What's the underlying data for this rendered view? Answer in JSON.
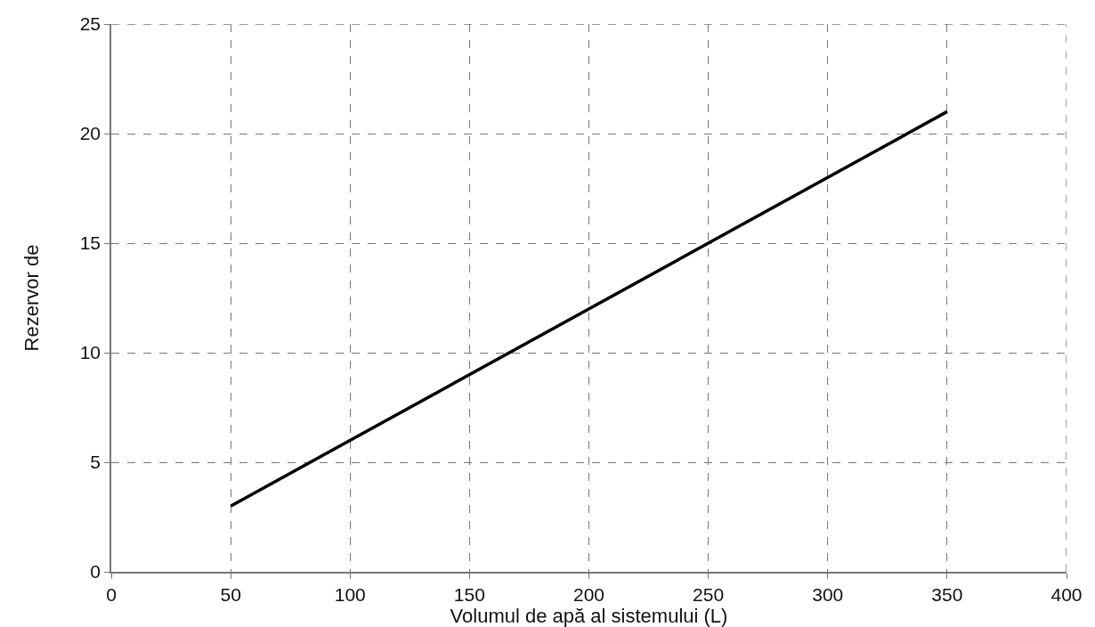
{
  "chart_data": {
    "type": "line",
    "xlabel": "Volumul de apă al sistemului (L)",
    "ylabel": "Rezervor de",
    "x": [
      50,
      350
    ],
    "series": [
      {
        "color": "#000000",
        "values": [
          3,
          21
        ]
      }
    ],
    "xlim": [
      0,
      400
    ],
    "xticks": [
      0,
      50,
      100,
      150,
      200,
      250,
      300,
      350,
      400
    ],
    "ylim": [
      0,
      25
    ],
    "yticks": [
      0,
      5,
      10,
      15,
      20,
      25
    ],
    "grid": true,
    "marker": "none",
    "line_style": "solid"
  }
}
